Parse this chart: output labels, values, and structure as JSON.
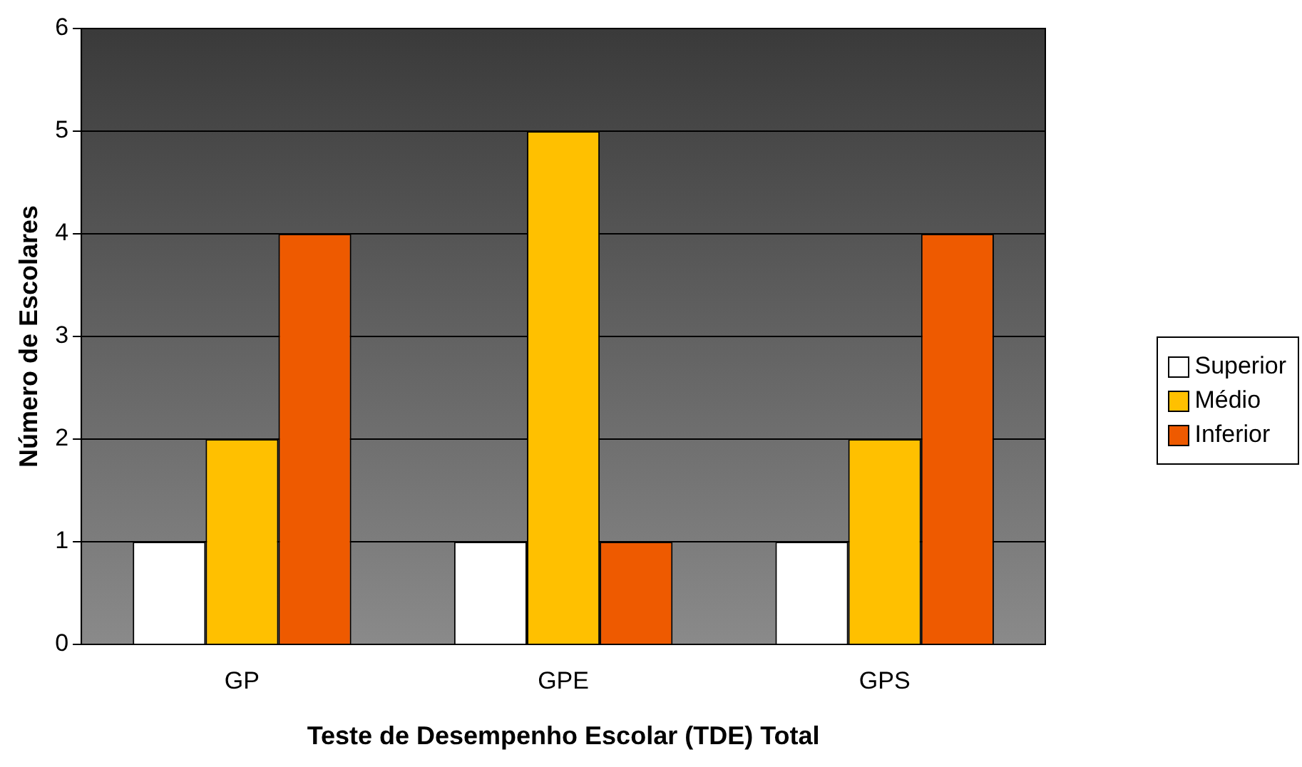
{
  "chart_data": {
    "type": "bar",
    "xlabel": "Teste de Desempenho Escolar (TDE) Total",
    "ylabel": "Número de Escolares",
    "categories": [
      "GP",
      "GPE",
      "GPS"
    ],
    "series": [
      {
        "name": "Superior",
        "color": "#ffffff",
        "values": [
          1,
          1,
          1
        ]
      },
      {
        "name": "Médio",
        "color": "#ffc000",
        "values": [
          2,
          5,
          2
        ]
      },
      {
        "name": "Inferior",
        "color": "#ee5a00",
        "values": [
          4,
          1,
          4
        ]
      }
    ],
    "ylim": [
      0,
      6
    ],
    "yticks": [
      0,
      1,
      2,
      3,
      4,
      5,
      6
    ],
    "grid": "y",
    "legend": "right"
  }
}
